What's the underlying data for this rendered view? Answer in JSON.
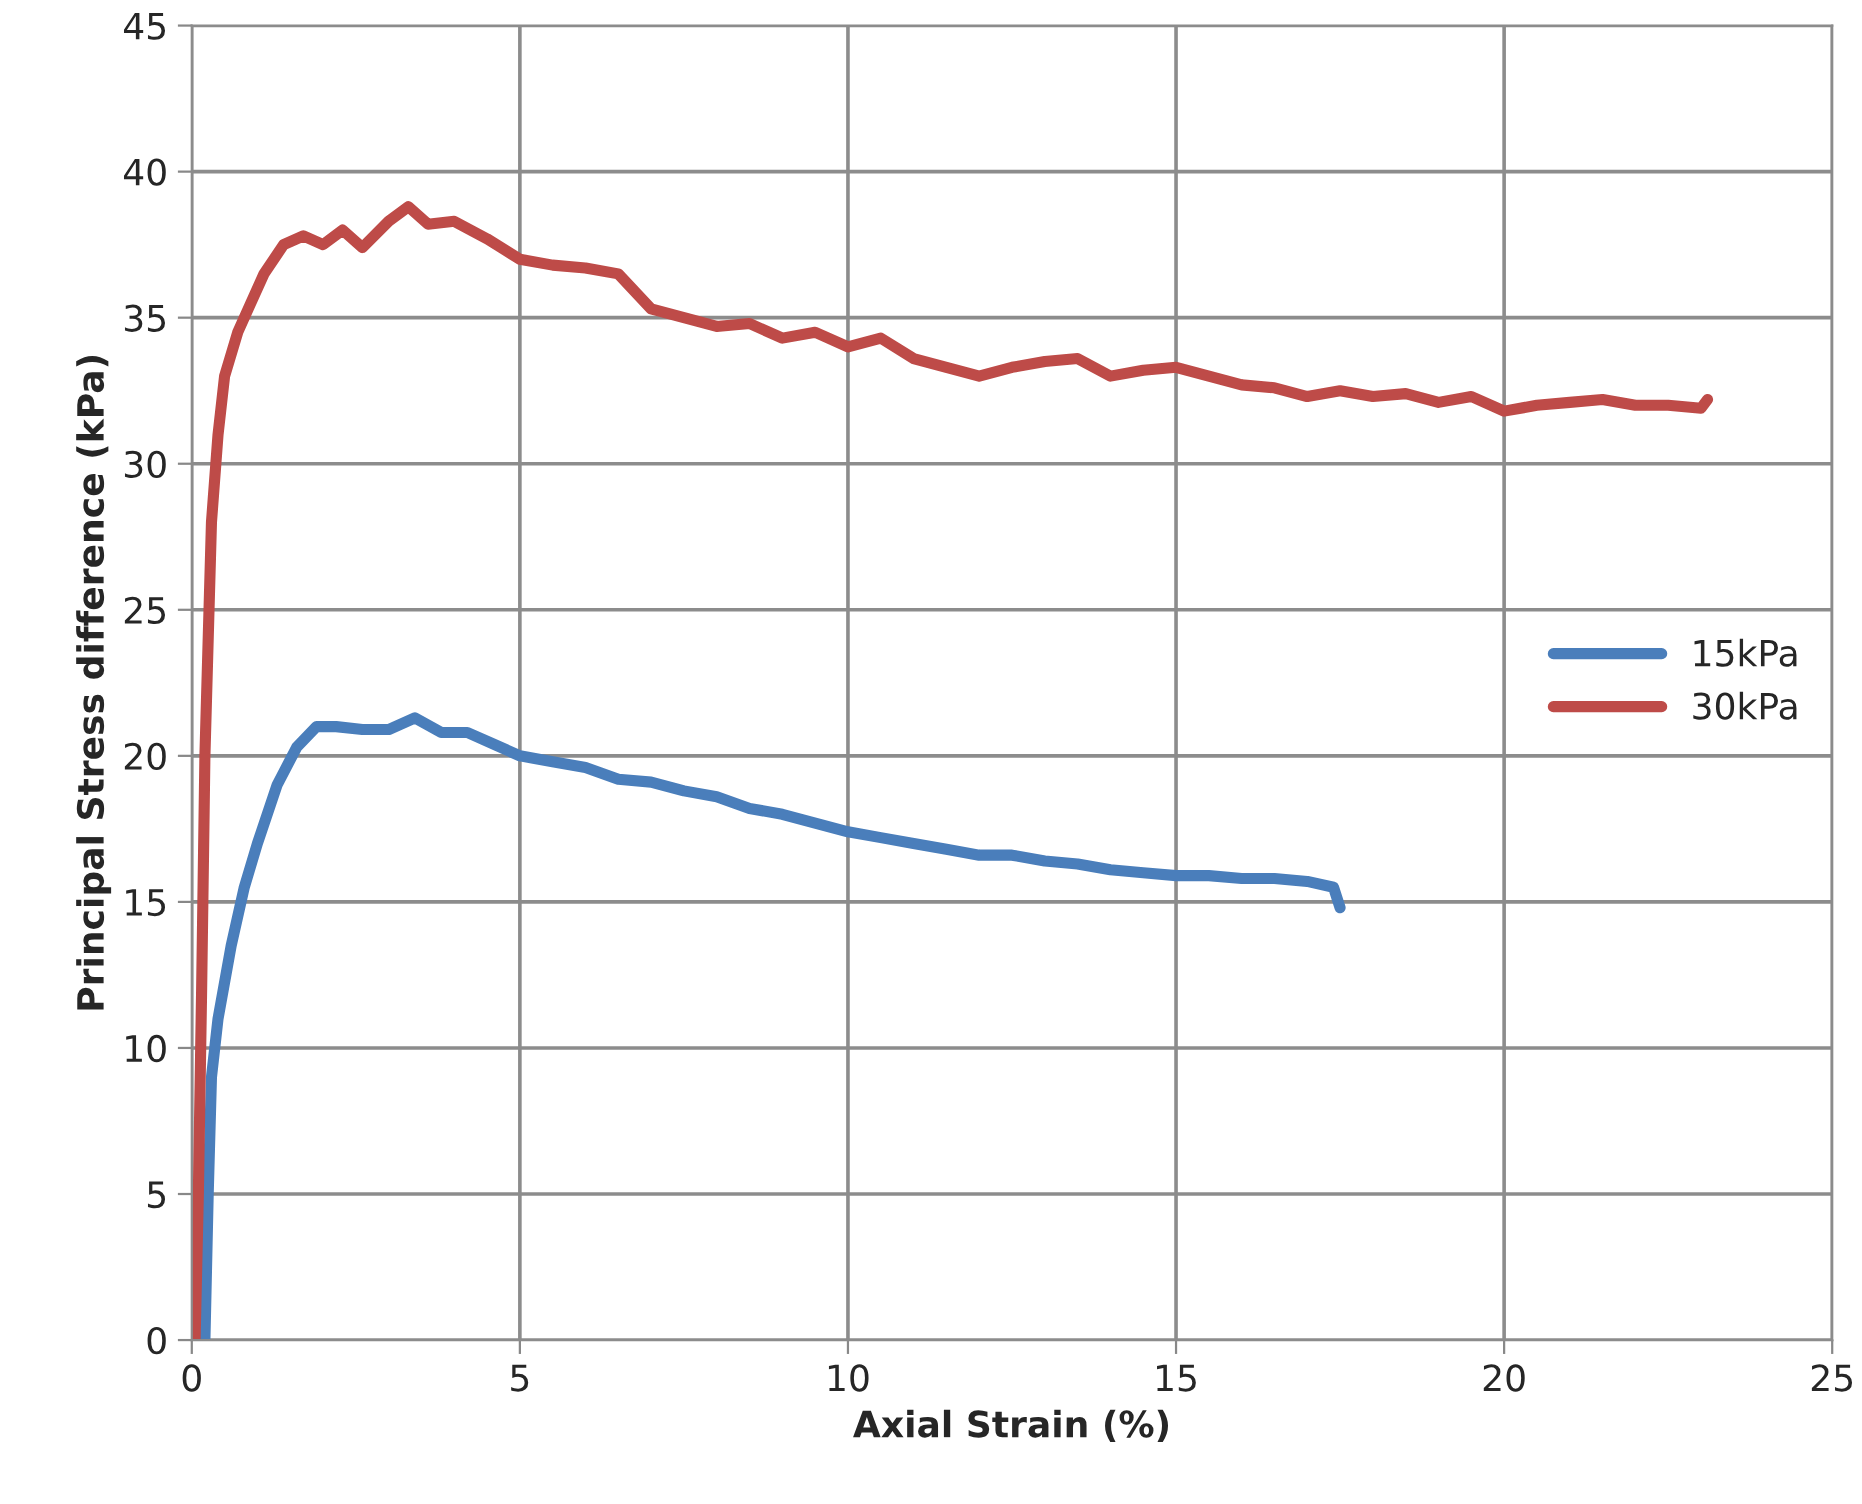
{
  "chart_data": {
    "type": "line",
    "xlabel": "Axial Strain (%)",
    "ylabel": "Principal Stress difference (kPa)",
    "xlim": [
      0,
      25
    ],
    "xticks": [
      0,
      5,
      10,
      15,
      20,
      25
    ],
    "ylim": [
      0,
      45
    ],
    "yticks": [
      0,
      5,
      10,
      15,
      20,
      25,
      30,
      35,
      40,
      45
    ],
    "grid": true,
    "legend": "right",
    "marker": "none",
    "line_style": "solid",
    "series": [
      {
        "name": "15kPa",
        "color": "#4a7ebb",
        "x": [
          0.2,
          0.25,
          0.3,
          0.4,
          0.6,
          0.8,
          1.0,
          1.3,
          1.6,
          1.9,
          2.2,
          2.6,
          3.0,
          3.4,
          3.8,
          4.2,
          4.6,
          5,
          5.5,
          6,
          6.5,
          7,
          7.5,
          8,
          8.5,
          9,
          9.5,
          10,
          10.5,
          11,
          11.5,
          12,
          12.5,
          13,
          13.5,
          14,
          14.5,
          15,
          15.5,
          16,
          16.5,
          17,
          17.4,
          17.5
        ],
        "values": [
          0,
          5,
          9,
          11,
          13.5,
          15.5,
          17,
          19,
          20.3,
          21,
          21,
          20.9,
          20.9,
          21.3,
          20.8,
          20.8,
          20.4,
          20,
          19.8,
          19.6,
          19.2,
          19.1,
          18.8,
          18.6,
          18.2,
          18,
          17.7,
          17.4,
          17.2,
          17,
          16.8,
          16.6,
          16.6,
          16.4,
          16.3,
          16.1,
          16,
          15.9,
          15.9,
          15.8,
          15.8,
          15.7,
          15.5,
          14.8
        ]
      },
      {
        "name": "30kPa",
        "color": "#be4b48",
        "x": [
          0.05,
          0.1,
          0.15,
          0.2,
          0.3,
          0.4,
          0.5,
          0.7,
          0.9,
          1.1,
          1.4,
          1.7,
          2.0,
          2.3,
          2.6,
          3.0,
          3.3,
          3.6,
          4.0,
          4.5,
          5.0,
          5.5,
          6.0,
          6.5,
          7.0,
          7.5,
          8.0,
          8.5,
          9.0,
          9.5,
          10.0,
          10.5,
          11.0,
          11.5,
          12,
          12.5,
          13,
          13.5,
          14,
          14.5,
          15,
          15.5,
          16,
          16.5,
          17,
          17.5,
          18,
          18.5,
          19,
          19.5,
          20,
          20.5,
          21,
          21.5,
          22,
          22.5,
          23,
          23.1
        ],
        "values": [
          0,
          5,
          12,
          20,
          28,
          31,
          33,
          34.5,
          35.5,
          36.5,
          37.5,
          37.8,
          37.5,
          38,
          37.4,
          38.3,
          38.8,
          38.2,
          38.3,
          37.7,
          37,
          36.8,
          36.7,
          36.5,
          35.3,
          35,
          34.7,
          34.8,
          34.3,
          34.5,
          34,
          34.3,
          33.6,
          33.3,
          33,
          33.3,
          33.5,
          33.6,
          33,
          33.2,
          33.3,
          33,
          32.7,
          32.6,
          32.3,
          32.5,
          32.3,
          32.4,
          32.1,
          32.3,
          31.8,
          32,
          32.1,
          32.2,
          32,
          32,
          31.9,
          32.2
        ]
      }
    ]
  }
}
